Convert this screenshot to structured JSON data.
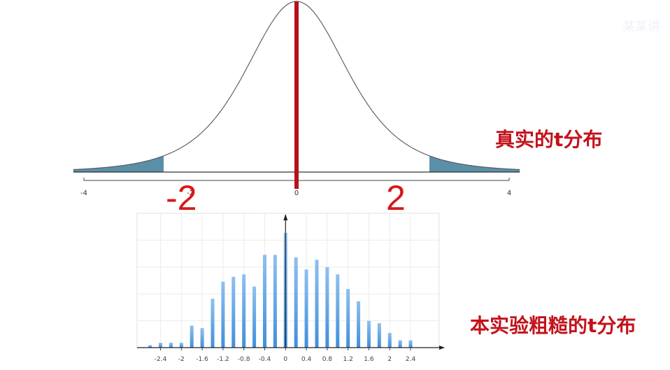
{
  "chart_data": [
    {
      "type": "line",
      "title": "真实的t分布",
      "x_range": [
        -4,
        4
      ],
      "ticks": [
        "-4",
        "-2",
        "0",
        "4"
      ],
      "tail_shading": [
        [
          -4.0,
          -2.5
        ],
        [
          2.5,
          4.0
        ]
      ],
      "center_marker": 0,
      "annotations": [
        "-2",
        "2"
      ],
      "colors": {
        "curve": "#555555",
        "tail": "#5b8fa8",
        "marker": "#b5111b",
        "annotation": "#d81818"
      }
    },
    {
      "type": "bar",
      "title": "本实验粗糙的t分布",
      "x": [
        -2.6,
        -2.4,
        -2.2,
        -2.0,
        -1.8,
        -1.6,
        -1.4,
        -1.2,
        -1.0,
        -0.8,
        -0.6,
        -0.4,
        -0.2,
        0.0,
        0.2,
        0.4,
        0.6,
        0.8,
        1.0,
        1.2,
        1.4,
        1.6,
        1.8,
        2.0,
        2.2,
        2.4
      ],
      "values": [
        1,
        2,
        2,
        2,
        9,
        8,
        20,
        27,
        29,
        30,
        25,
        38,
        38,
        47,
        37,
        32,
        36,
        33,
        30,
        24,
        19,
        11,
        10,
        6,
        3,
        3
      ],
      "ylim": [
        0,
        55
      ],
      "tick_labels": [
        "-2.4",
        "-2",
        "-1.6",
        "-1.2",
        "-0.8",
        "-0.4",
        "0",
        "0.4",
        "0.8",
        "1.2",
        "1.6",
        "2",
        "2.4"
      ],
      "grid": true,
      "colors": {
        "bar": "#3f8fdc"
      }
    }
  ],
  "watermark": "某某讲"
}
